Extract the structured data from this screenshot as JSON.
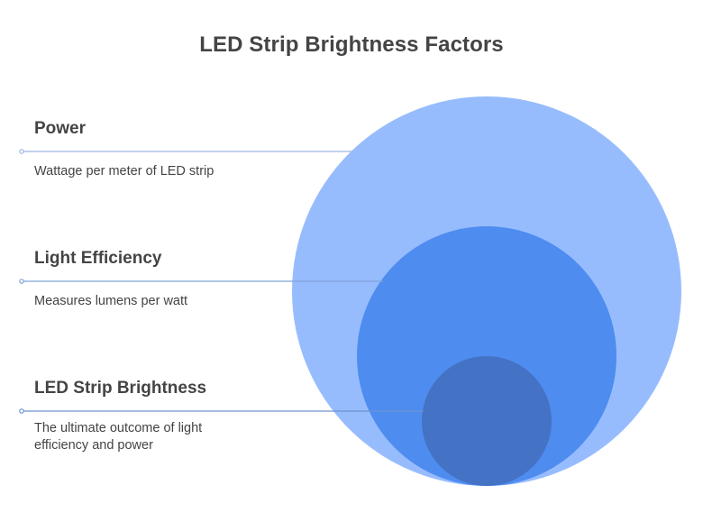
{
  "title": "LED Strip Brightness Factors",
  "layers": [
    {
      "name": "Power",
      "description": "Wattage per meter of LED strip",
      "color": "#97BCFE"
    },
    {
      "name": "Light Efficiency",
      "description": "Measures lumens per watt",
      "color": "#4E8CEF"
    },
    {
      "name": "LED Strip Brightness",
      "description": "The ultimate outcome of light efficiency and power",
      "color": "#4472C4"
    }
  ],
  "colors": {
    "text": "#444444",
    "connector": "#9DB7E2"
  }
}
